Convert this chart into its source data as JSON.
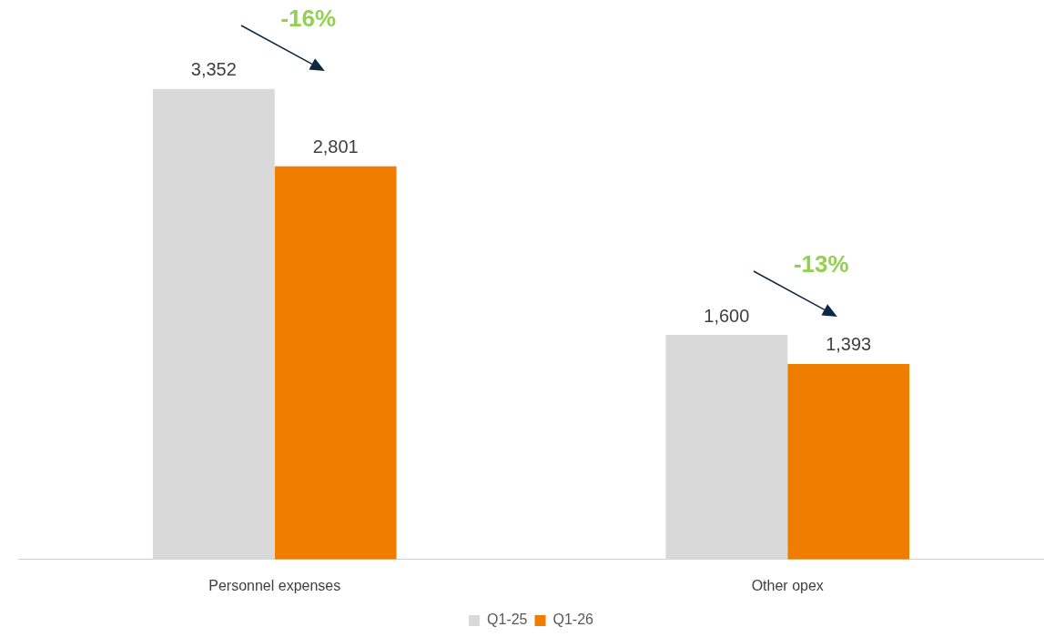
{
  "chart_data": {
    "type": "bar",
    "categories": [
      "Personnel expenses",
      "Other opex"
    ],
    "series": [
      {
        "name": "Q1-25",
        "color": "#d9d9d9",
        "values": [
          3352,
          1600
        ],
        "value_labels": [
          "3,352",
          "1,600"
        ]
      },
      {
        "name": "Q1-26",
        "color": "#ee7d00",
        "values": [
          2801,
          1393
        ],
        "value_labels": [
          "2,801",
          "1,393"
        ]
      }
    ],
    "legend": "bottom",
    "grid": false,
    "annotations": [
      "-16%",
      "-13%"
    ]
  }
}
